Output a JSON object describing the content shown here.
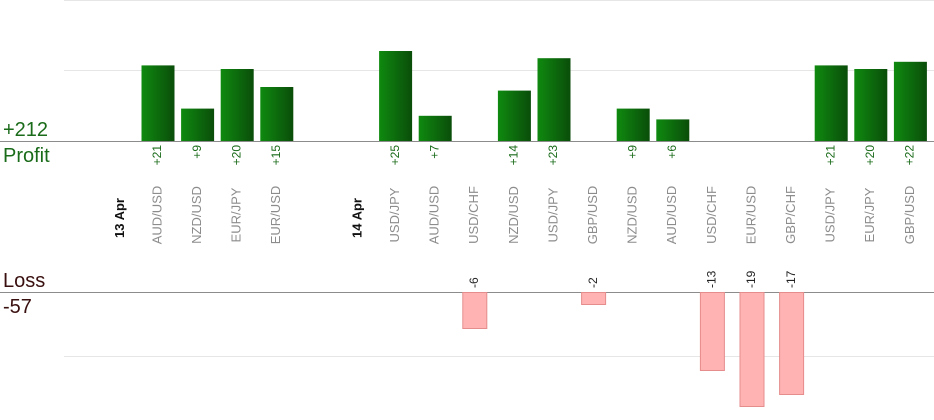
{
  "summary": {
    "profit_total": "+212",
    "profit_label": "Profit",
    "loss_label": "Loss",
    "loss_total": "-57"
  },
  "colors": {
    "profit_bar_dark": "#0a4d0a",
    "profit_bar_light": "#0f8a0f",
    "loss_bar": "#ffb3b3",
    "loss_bar_border": "#e58c8c",
    "profit_text": "#1a6b1a",
    "grid": "#e6e6e6",
    "axis": "#8c8c8c"
  },
  "chart_data": {
    "type": "bar",
    "title": "",
    "xlabel": "",
    "ylabel": "",
    "ylim": [
      -57,
      212
    ],
    "grid": true,
    "legend": "none",
    "groups": [
      {
        "date": "13 Apr",
        "trades": [
          {
            "pair": "AUD/USD",
            "value": 21,
            "label": "+21"
          },
          {
            "pair": "NZD/USD",
            "value": 9,
            "label": "+9"
          },
          {
            "pair": "EUR/JPY",
            "value": 20,
            "label": "+20"
          },
          {
            "pair": "EUR/USD",
            "value": 15,
            "label": "+15"
          }
        ]
      },
      {
        "date": "14 Apr",
        "trades": [
          {
            "pair": "USD/JPY",
            "value": 25,
            "label": "+25"
          },
          {
            "pair": "AUD/USD",
            "value": 7,
            "label": "+7"
          },
          {
            "pair": "USD/CHF",
            "value": -6,
            "label": "-6"
          },
          {
            "pair": "NZD/USD",
            "value": 14,
            "label": "+14"
          },
          {
            "pair": "USD/JPY",
            "value": 23,
            "label": "+23"
          },
          {
            "pair": "GBP/USD",
            "value": -2,
            "label": "-2"
          },
          {
            "pair": "NZD/USD",
            "value": 9,
            "label": "+9"
          },
          {
            "pair": "AUD/USD",
            "value": 6,
            "label": "+6"
          },
          {
            "pair": "USD/CHF",
            "value": -13,
            "label": "-13"
          },
          {
            "pair": "EUR/USD",
            "value": -19,
            "label": "-19"
          },
          {
            "pair": "GBP/CHF",
            "value": -17,
            "label": "-17"
          },
          {
            "pair": "USD/JPY",
            "value": 21,
            "label": "+21"
          },
          {
            "pair": "EUR/JPY",
            "value": 20,
            "label": "+20"
          },
          {
            "pair": "GBP/USD",
            "value": 22,
            "label": "+22"
          }
        ]
      }
    ]
  }
}
